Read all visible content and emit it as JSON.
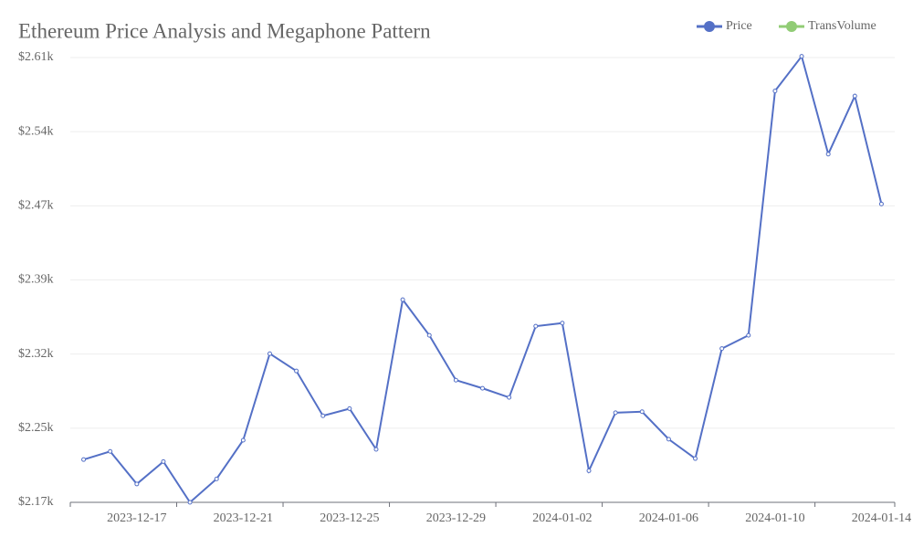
{
  "chart_data": {
    "type": "line",
    "title": "Ethereum Price Analysis and Megaphone Pattern",
    "categories": [
      null,
      null,
      "2023-12-17",
      null,
      null,
      null,
      "2023-12-21",
      null,
      null,
      null,
      "2023-12-25",
      null,
      null,
      null,
      "2023-12-29",
      null,
      null,
      null,
      "2024-01-02",
      null,
      null,
      null,
      "2024-01-06",
      null,
      null,
      null,
      "2024-01-10",
      null,
      null,
      null,
      "2024-01-14"
    ],
    "series": [
      {
        "name": "Price",
        "color": "#5470c6",
        "values": [
          2216,
          2224,
          2192,
          2214,
          2174,
          2197,
          2235,
          2320,
          2303,
          2259,
          2266,
          2226,
          2373,
          2338,
          2294,
          2286,
          2277,
          2347,
          2350,
          2205,
          2262,
          2263,
          2236,
          2217,
          2325,
          2338,
          2578,
          2612,
          2516,
          2573,
          2467
        ]
      },
      {
        "name": "TransVolume",
        "color": "#91cc75"
      }
    ],
    "ylim": [
      2174,
      2610.8
    ],
    "yticks": [
      {
        "value": 2174,
        "label": "$2.17k"
      },
      {
        "value": 2246.8,
        "label": "$2.25k"
      },
      {
        "value": 2319.6,
        "label": "$2.32k"
      },
      {
        "value": 2392.4,
        "label": "$2.39k"
      },
      {
        "value": 2465.2,
        "label": "$2.47k"
      },
      {
        "value": 2538,
        "label": "$2.54k"
      },
      {
        "value": 2610.8,
        "label": "$2.61k"
      }
    ],
    "grid": true,
    "legend": "top-right"
  }
}
